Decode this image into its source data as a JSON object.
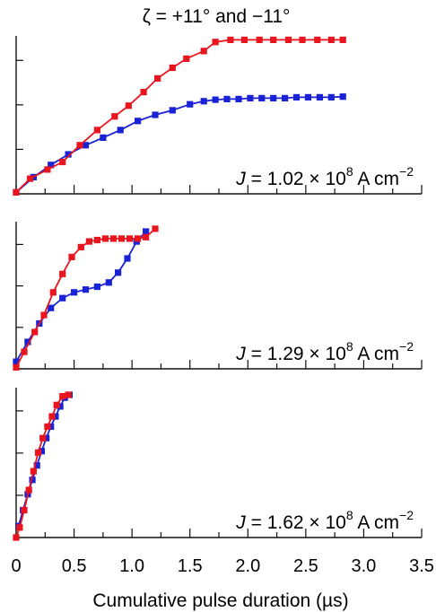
{
  "title": "ζ = +11° and −11°",
  "xlabel": "Cumulative pulse duration (µs)",
  "x_tick_labels": [
    "0",
    "0.5",
    "1.0",
    "1.5",
    "2.0",
    "2.5",
    "3.0",
    "3.5"
  ],
  "colors": {
    "plus": "#e8141e",
    "minus": "#1a22d6",
    "axis": "#111111"
  },
  "chart_data": [
    {
      "type": "line",
      "panel_label": {
        "pre": "J",
        "mid": " = 1.02 × 10",
        "exp1": "8",
        "unit": " A cm",
        "exp2": "−2"
      },
      "xlim": [
        0,
        3.5
      ],
      "ylim": [
        0,
        5.2
      ],
      "series": [
        {
          "color": "red",
          "x": [
            0,
            0.12,
            0.27,
            0.4,
            0.55,
            0.7,
            0.85,
            0.97,
            1.1,
            1.22,
            1.35,
            1.47,
            1.62,
            1.72,
            1.85,
            1.97,
            2.1,
            2.22,
            2.35,
            2.47,
            2.6,
            2.72,
            2.82
          ],
          "y": [
            0.05,
            0.5,
            0.8,
            1.05,
            1.6,
            2.1,
            2.55,
            2.9,
            3.35,
            3.8,
            4.15,
            4.45,
            4.7,
            5.0,
            5.07,
            5.07,
            5.07,
            5.07,
            5.07,
            5.07,
            5.07,
            5.07,
            5.07
          ]
        },
        {
          "color": "blue",
          "x": [
            0,
            0.15,
            0.3,
            0.45,
            0.6,
            0.75,
            0.9,
            1.05,
            1.2,
            1.35,
            1.5,
            1.62,
            1.72,
            1.82,
            1.92,
            2.02,
            2.12,
            2.22,
            2.32,
            2.42,
            2.52,
            2.62,
            2.72,
            2.82
          ],
          "y": [
            0.05,
            0.55,
            0.95,
            1.3,
            1.6,
            1.85,
            2.1,
            2.4,
            2.6,
            2.75,
            2.95,
            3.05,
            3.1,
            3.12,
            3.12,
            3.15,
            3.15,
            3.15,
            3.15,
            3.18,
            3.18,
            3.18,
            3.18,
            3.2
          ]
        }
      ]
    },
    {
      "type": "line",
      "panel_label": {
        "pre": "J",
        "mid": " = 1.29 × 10",
        "exp1": "8",
        "unit": " A cm",
        "exp2": "−2"
      },
      "xlim": [
        0,
        3.5
      ],
      "ylim": [
        0,
        5.2
      ],
      "series": [
        {
          "color": "red",
          "x": [
            0,
            0.07,
            0.16,
            0.24,
            0.32,
            0.4,
            0.48,
            0.56,
            0.63,
            0.7,
            0.77,
            0.84,
            0.91,
            0.98,
            1.05,
            1.12,
            1.2
          ],
          "y": [
            0.05,
            0.6,
            1.3,
            1.9,
            2.7,
            3.35,
            3.95,
            4.3,
            4.5,
            4.55,
            4.6,
            4.6,
            4.6,
            4.6,
            4.6,
            4.65,
            4.95
          ]
        },
        {
          "color": "blue",
          "x": [
            0,
            0.1,
            0.2,
            0.3,
            0.4,
            0.5,
            0.6,
            0.7,
            0.8,
            0.88,
            0.96,
            1.04,
            1.12
          ],
          "y": [
            0.25,
            0.95,
            1.6,
            2.15,
            2.5,
            2.7,
            2.8,
            2.9,
            3.05,
            3.4,
            3.9,
            4.5,
            4.85
          ]
        }
      ]
    },
    {
      "type": "line",
      "panel_label": {
        "pre": "J",
        "mid": " = 1.62 × 10",
        "exp1": "8",
        "unit": " A cm",
        "exp2": "−2"
      },
      "xlim": [
        0,
        3.5
      ],
      "ylim": [
        0,
        5.2
      ],
      "series": [
        {
          "color": "red",
          "x": [
            0,
            0.03,
            0.07,
            0.11,
            0.15,
            0.19,
            0.23,
            0.27,
            0.31,
            0.35,
            0.4,
            0.45
          ],
          "y": [
            0.0,
            0.35,
            0.95,
            1.65,
            2.3,
            2.95,
            3.45,
            3.85,
            4.2,
            4.6,
            4.9,
            4.95
          ]
        },
        {
          "color": "blue",
          "x": [
            0.02,
            0.06,
            0.1,
            0.14,
            0.18,
            0.22,
            0.26,
            0.3,
            0.34,
            0.38,
            0.42,
            0.46
          ],
          "y": [
            0.4,
            0.95,
            1.5,
            2.0,
            2.5,
            3.0,
            3.45,
            3.85,
            4.2,
            4.55,
            4.85,
            4.95
          ]
        }
      ]
    }
  ]
}
